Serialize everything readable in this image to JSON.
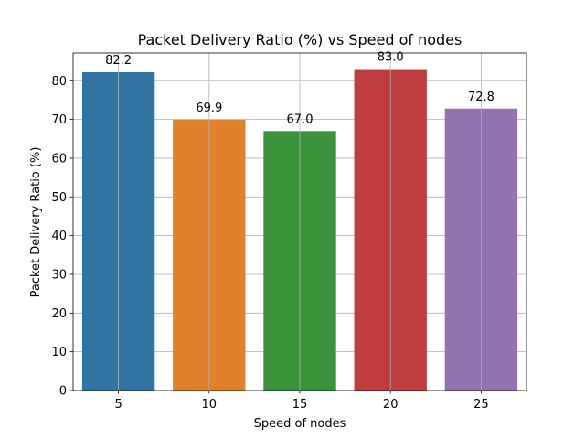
{
  "chart_data": {
    "type": "bar",
    "title": "Packet Delivery Ratio (%) vs Speed of nodes",
    "xlabel": "Speed of nodes",
    "ylabel": "Packet Delivery Ratio (%)",
    "categories": [
      "5",
      "10",
      "15",
      "20",
      "25"
    ],
    "values": [
      82.2,
      69.9,
      67.0,
      83.0,
      72.8
    ],
    "data_labels": [
      "82.2",
      "69.9",
      "67.0",
      "83.0",
      "72.8"
    ],
    "colors": [
      "#3274a1",
      "#e1812c",
      "#3a923a",
      "#c03d3e",
      "#9372b2"
    ],
    "ylim": [
      0,
      87.15
    ],
    "yticks": [
      0,
      10,
      20,
      30,
      40,
      50,
      60,
      70,
      80
    ],
    "grid": true
  }
}
